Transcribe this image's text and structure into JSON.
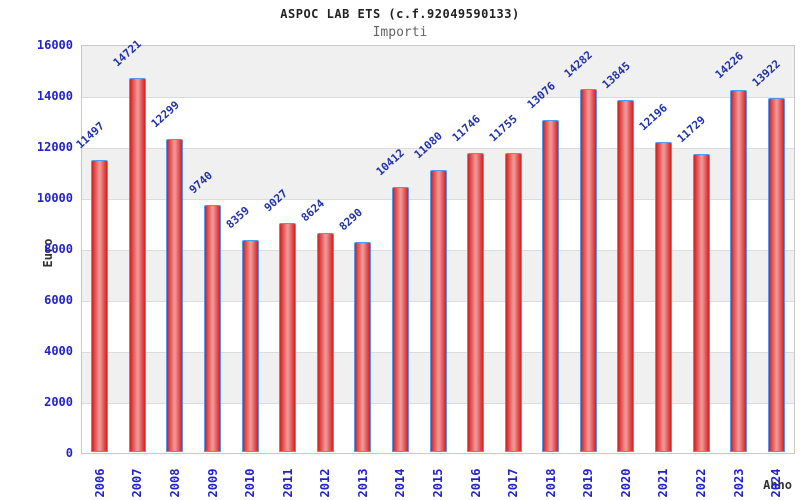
{
  "chart_data": {
    "type": "bar",
    "title": "ASPOC LAB ETS (c.f.92049590133)",
    "subtitle": "Importi",
    "xlabel": "Anno",
    "ylabel": "Euro",
    "categories": [
      "2006",
      "2007",
      "2008",
      "2009",
      "2010",
      "2011",
      "2012",
      "2013",
      "2014",
      "2015",
      "2016",
      "2017",
      "2018",
      "2019",
      "2020",
      "2021",
      "2022",
      "2023",
      "2024"
    ],
    "values": [
      11497,
      14721,
      12299,
      9740,
      8359,
      9027,
      8624,
      8290,
      10412,
      11080,
      11746,
      11755,
      13076,
      14282,
      13845,
      12196,
      11729,
      14226,
      13922
    ],
    "ylim": [
      0,
      16000
    ],
    "ytick_step": 2000,
    "legend_position": "none",
    "grid": "horizontal gridlines with alternating shaded bands",
    "colors": {
      "bar_fill_edge": "#d42020",
      "bar_fill_center": "#f09595",
      "bar_border": "#5599ee",
      "tick_label": "#2222cc",
      "value_label": "#2233aa",
      "band_gray": "#f0f0f0",
      "gridline": "#dcdcdc",
      "title": "#222222",
      "subtitle": "#666666",
      "axis_label": "#333333"
    }
  }
}
